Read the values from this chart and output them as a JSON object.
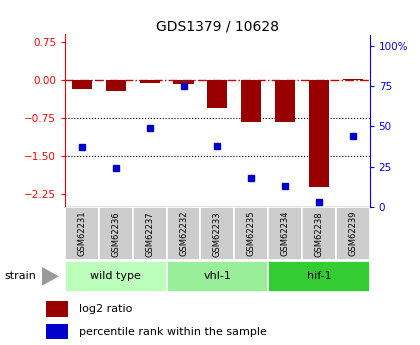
{
  "title": "GDS1379 / 10628",
  "samples": [
    "GSM62231",
    "GSM62236",
    "GSM62237",
    "GSM62232",
    "GSM62233",
    "GSM62235",
    "GSM62234",
    "GSM62238",
    "GSM62239"
  ],
  "log2_ratio": [
    -0.18,
    -0.22,
    -0.05,
    -0.08,
    -0.55,
    -0.82,
    -0.82,
    -2.1,
    0.02
  ],
  "percentile_rank": [
    37,
    24,
    49,
    75,
    38,
    18,
    13,
    3,
    44
  ],
  "ylim_left": [
    -2.5,
    0.9
  ],
  "ylim_right": [
    0,
    107
  ],
  "groups": [
    {
      "label": "wild type",
      "start": 0,
      "end": 3,
      "color": "#bbffbb"
    },
    {
      "label": "vhl-1",
      "start": 3,
      "end": 6,
      "color": "#99ee99"
    },
    {
      "label": "hif-1",
      "start": 6,
      "end": 9,
      "color": "#33cc33"
    }
  ],
  "hline_dashed": 0,
  "hlines_dotted": [
    -0.75,
    -1.5
  ],
  "bar_color": "#990000",
  "dot_color": "#0000cc",
  "background_color": "#ffffff",
  "yticks_left": [
    0.75,
    0,
    -0.75,
    -1.5,
    -2.25
  ],
  "yticks_right": [
    100,
    75,
    50,
    25,
    0
  ],
  "strain_label": "strain"
}
